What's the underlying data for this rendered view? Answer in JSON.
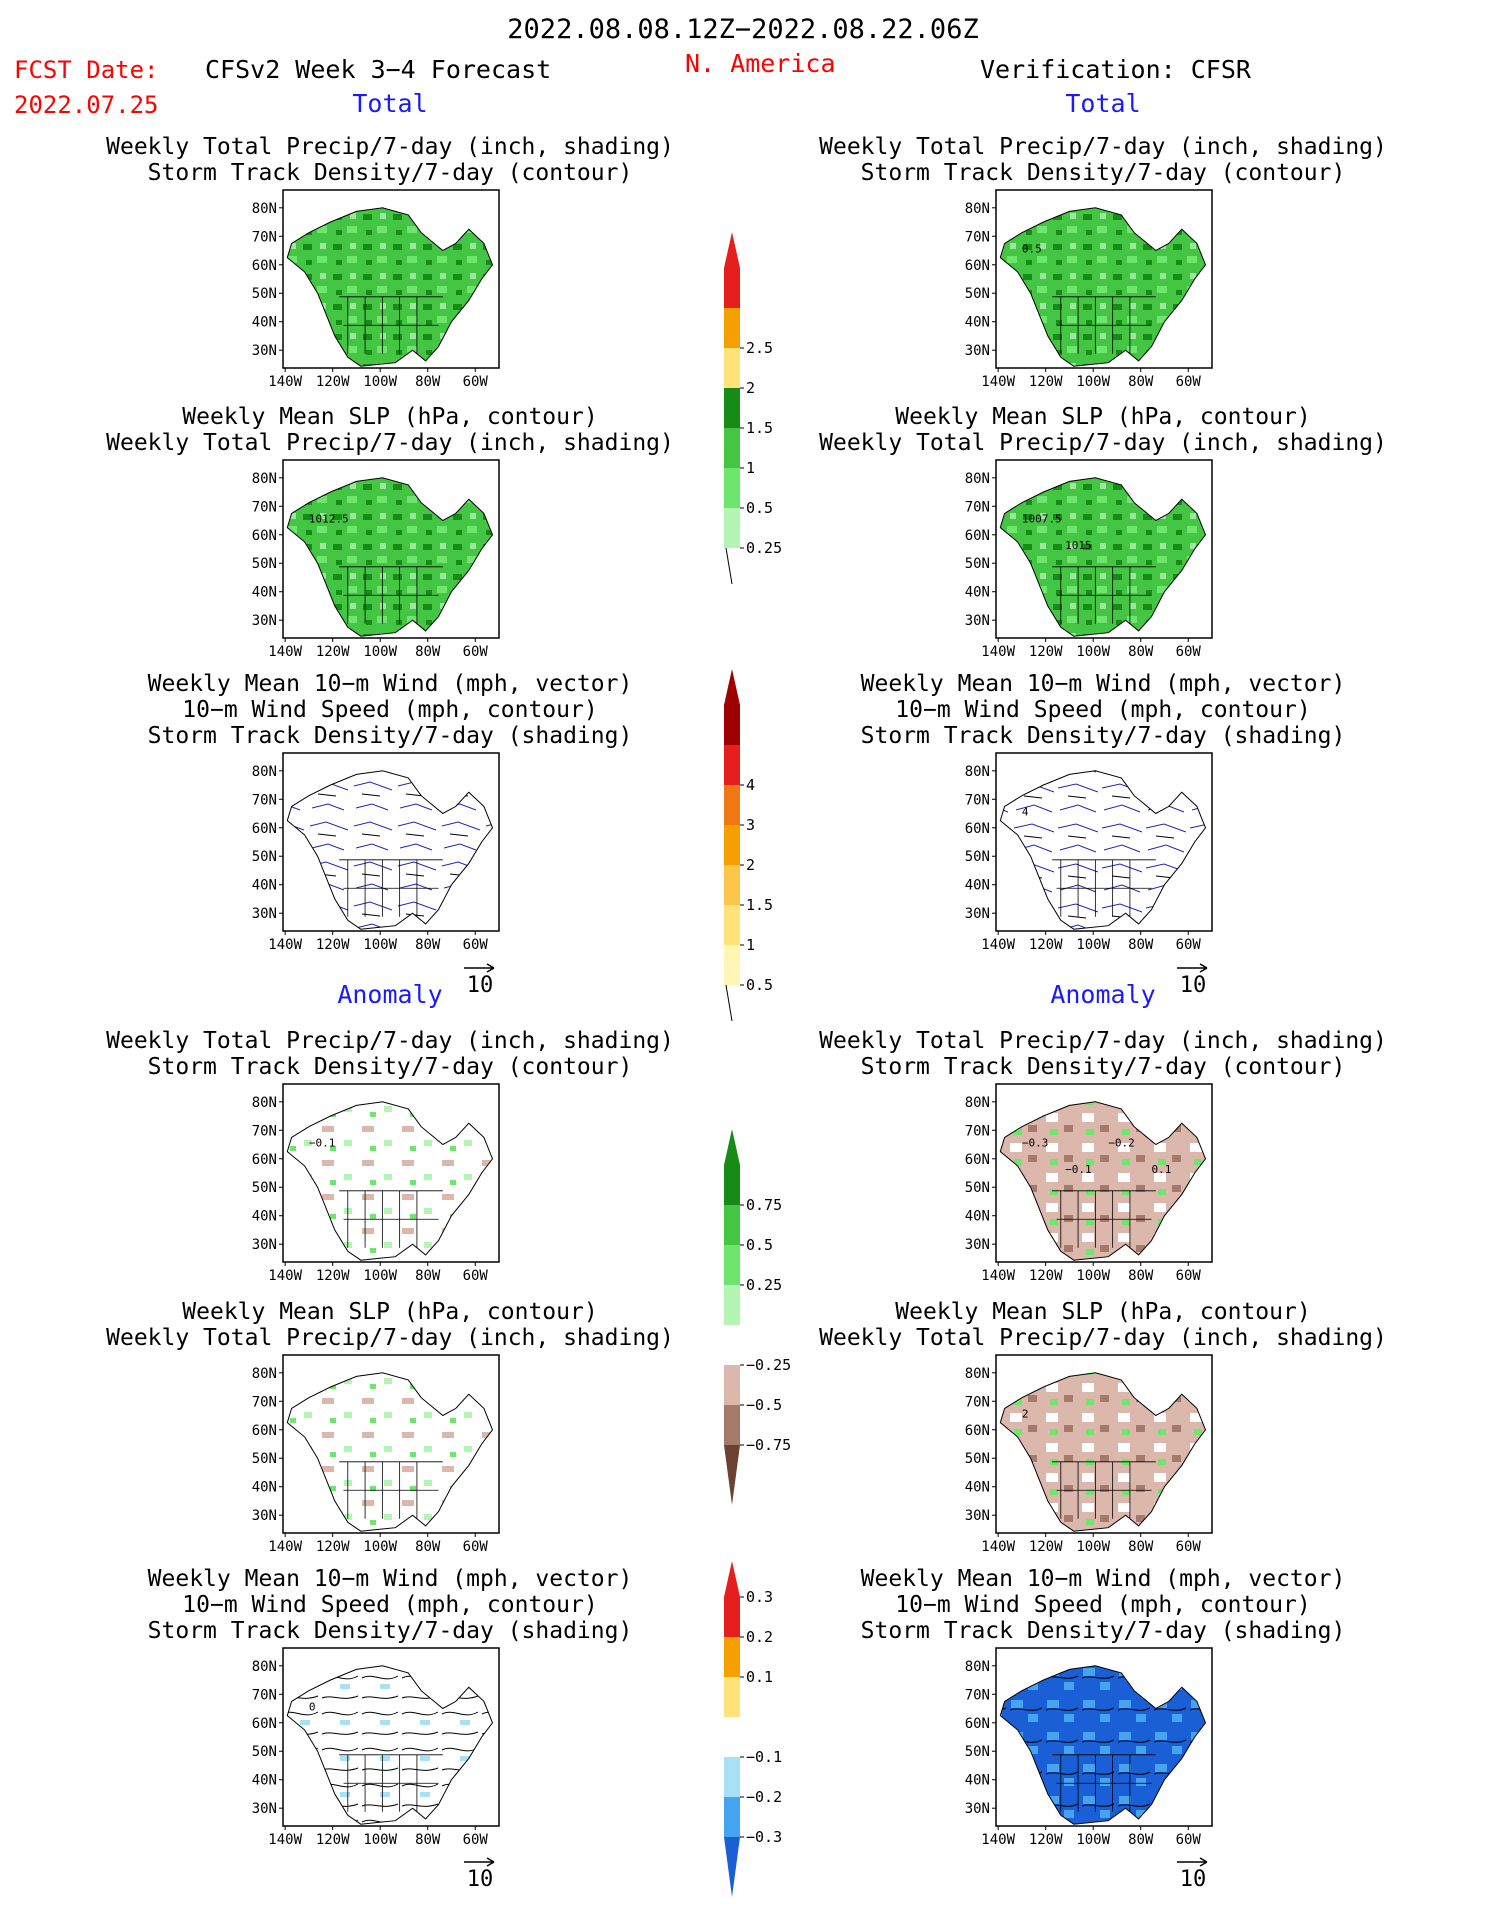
{
  "header": {
    "date_range": "2022.08.08.12Z−2022.08.22.06Z",
    "fcst_label": "FCST Date:",
    "fcst_date": "2022.07.25",
    "forecast_title": "CFSv2 Week 3−4 Forecast",
    "region": "N. America",
    "verification": "Verification: CFSR"
  },
  "colors": {
    "fcst_date": "#ff0000",
    "region": "#ff0000",
    "section_label": "#1a1aff",
    "land_green": "#44c644",
    "dark_green": "#168c16",
    "light_green": "#9ee59e",
    "yellow": "#ffe37a",
    "orange": "#f5a000",
    "red": "#e51e1e",
    "dark_red": "#a00000",
    "brown_light": "#dbb8ab",
    "brown_mid": "#a57a6a",
    "brown_dark": "#6e4232",
    "blue_light": "#a8e0f5",
    "blue_mid": "#44a4f0",
    "blue_dark": "#1a5fd6",
    "wind_contour": "#2424b4"
  },
  "section_labels": {
    "total": "Total",
    "anomaly": "Anomaly"
  },
  "axes": {
    "lat_ticks": [
      "80N",
      "70N",
      "60N",
      "50N",
      "40N",
      "30N"
    ],
    "lon_ticks": [
      "140W",
      "120W",
      "100W",
      "80W",
      "60W"
    ]
  },
  "vector_ref": "10",
  "panels": [
    {
      "col": 0,
      "row": 0,
      "fill": "precip_total",
      "title": [
        "Weekly Total Precip/7-day (inch, shading)",
        "Storm Track Density/7-day (contour)"
      ],
      "contour_labels": []
    },
    {
      "col": 1,
      "row": 0,
      "fill": "precip_total",
      "title": [
        "Weekly Total Precip/7-day (inch, shading)",
        "Storm Track Density/7-day (contour)"
      ],
      "contour_labels": [
        "0.5"
      ]
    },
    {
      "col": 0,
      "row": 1,
      "fill": "precip_total",
      "title": [
        "Weekly Mean SLP (hPa, contour)",
        "Weekly Total Precip/7-day (inch, shading)"
      ],
      "contour_labels": [
        "1012.5"
      ]
    },
    {
      "col": 1,
      "row": 1,
      "fill": "precip_total",
      "title": [
        "Weekly Mean SLP (hPa, contour)",
        "Weekly Total Precip/7-day (inch, shading)"
      ],
      "contour_labels": [
        "1007.5",
        "1015"
      ]
    },
    {
      "col": 0,
      "row": 2,
      "fill": "storm_total_fcst",
      "title": [
        "Weekly Mean 10−m Wind (mph, vector)",
        "10−m Wind Speed (mph, contour)",
        "Storm Track Density/7-day (shading)"
      ],
      "contour_labels": []
    },
    {
      "col": 1,
      "row": 2,
      "fill": "storm_total_obs",
      "title": [
        "Weekly Mean 10−m Wind (mph, vector)",
        "10−m Wind Speed (mph, contour)",
        "Storm Track Density/7-day (shading)"
      ],
      "contour_labels": [
        "4"
      ]
    },
    {
      "col": 0,
      "row": 3,
      "fill": "precip_anom",
      "title": [
        "Weekly Total Precip/7-day (inch, shading)",
        "Storm Track Density/7-day (contour)"
      ],
      "contour_labels": [
        "−0.1"
      ]
    },
    {
      "col": 1,
      "row": 3,
      "fill": "precip_anom_obs",
      "title": [
        "Weekly Total Precip/7-day (inch, shading)",
        "Storm Track Density/7-day (contour)"
      ],
      "contour_labels": [
        "−0.3",
        "−0.1",
        "−0.2",
        "0.1"
      ]
    },
    {
      "col": 0,
      "row": 4,
      "fill": "precip_anom",
      "title": [
        "Weekly Mean SLP (hPa, contour)",
        "Weekly Total Precip/7-day (inch, shading)"
      ],
      "contour_labels": []
    },
    {
      "col": 1,
      "row": 4,
      "fill": "precip_anom_obs",
      "title": [
        "Weekly Mean SLP (hPa, contour)",
        "Weekly Total Precip/7-day (inch, shading)"
      ],
      "contour_labels": [
        "2"
      ]
    },
    {
      "col": 0,
      "row": 5,
      "fill": "storm_anom_fcst",
      "title": [
        "Weekly Mean 10−m Wind (mph, vector)",
        "10−m Wind Speed (mph, contour)",
        "Storm Track Density/7-day (shading)"
      ],
      "contour_labels": [
        "0"
      ]
    },
    {
      "col": 1,
      "row": 5,
      "fill": "storm_anom_obs",
      "title": [
        "Weekly Mean 10−m Wind (mph, vector)",
        "10−m Wind Speed (mph, contour)",
        "Storm Track Density/7-day (shading)"
      ],
      "contour_labels": []
    }
  ],
  "colorbars": [
    {
      "top": "red",
      "bottom": "line",
      "colors": [
        "#b4f5b4",
        "#6ee66e",
        "#44c644",
        "#168c16",
        "#ffe37a",
        "#f5a000",
        "#e51e1e"
      ],
      "labels": [
        "0.25",
        "0.5",
        "1",
        "1.5",
        "2",
        "2.5"
      ]
    },
    {
      "top": "red",
      "bottom": "line",
      "colors": [
        "#fff5b4",
        "#ffe37a",
        "#fbc64a",
        "#f5a000",
        "#f07814",
        "#e51e1e",
        "#a00000"
      ],
      "labels": [
        "0.5",
        "1",
        "1.5",
        "2",
        "3",
        "4"
      ]
    },
    {
      "top": "green",
      "bottom": "brown",
      "colors": [
        "#6e4232",
        "#a57a6a",
        "#dbb8ab",
        "#ffffff",
        "#b4f5b4",
        "#6ee66e",
        "#44c644",
        "#168c16"
      ],
      "labels": [
        "−0.75",
        "−0.5",
        "−0.25",
        "0.25",
        "0.5",
        "0.75"
      ]
    },
    {
      "top": "red",
      "bottom": "blue",
      "colors": [
        "#1a5fd6",
        "#44a4f0",
        "#a8e0f5",
        "#ffffff",
        "#ffe37a",
        "#f5a000",
        "#e51e1e"
      ],
      "labels": [
        "−0.3",
        "−0.2",
        "−0.1",
        "0.1",
        "0.2",
        "0.3"
      ]
    }
  ]
}
